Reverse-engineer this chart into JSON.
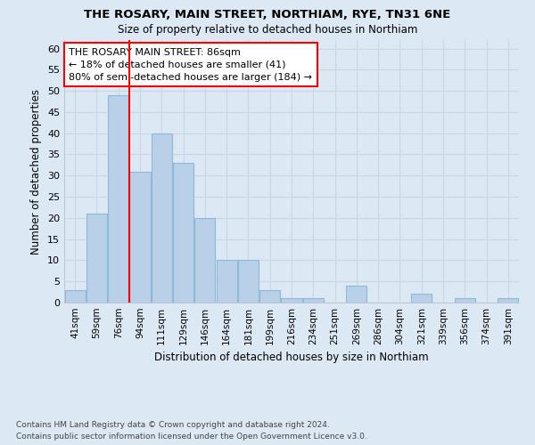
{
  "title1": "THE ROSARY, MAIN STREET, NORTHIAM, RYE, TN31 6NE",
  "title2": "Size of property relative to detached houses in Northiam",
  "xlabel_bottom": "Distribution of detached houses by size in Northiam",
  "ylabel": "Number of detached properties",
  "categories": [
    "41sqm",
    "59sqm",
    "76sqm",
    "94sqm",
    "111sqm",
    "129sqm",
    "146sqm",
    "164sqm",
    "181sqm",
    "199sqm",
    "216sqm",
    "234sqm",
    "251sqm",
    "269sqm",
    "286sqm",
    "304sqm",
    "321sqm",
    "339sqm",
    "356sqm",
    "374sqm",
    "391sqm"
  ],
  "values": [
    3,
    21,
    49,
    31,
    40,
    33,
    20,
    10,
    10,
    3,
    1,
    1,
    0,
    4,
    0,
    0,
    2,
    0,
    1,
    0,
    1
  ],
  "bar_color": "#b8d0e8",
  "bar_edgecolor": "#90b8d8",
  "annotation_text_line1": "THE ROSARY MAIN STREET: 86sqm",
  "annotation_text_line2": "← 18% of detached houses are smaller (41)",
  "annotation_text_line3": "80% of semi-detached houses are larger (184) →",
  "annotation_box_color": "white",
  "annotation_box_edgecolor": "red",
  "vline_color": "red",
  "vline_x_index": 2.5,
  "ylim": [
    0,
    62
  ],
  "yticks": [
    0,
    5,
    10,
    15,
    20,
    25,
    30,
    35,
    40,
    45,
    50,
    55,
    60
  ],
  "grid_color": "#c8d8e8",
  "background_color": "#dce8f4",
  "footer1": "Contains HM Land Registry data © Crown copyright and database right 2024.",
  "footer2": "Contains public sector information licensed under the Open Government Licence v3.0."
}
